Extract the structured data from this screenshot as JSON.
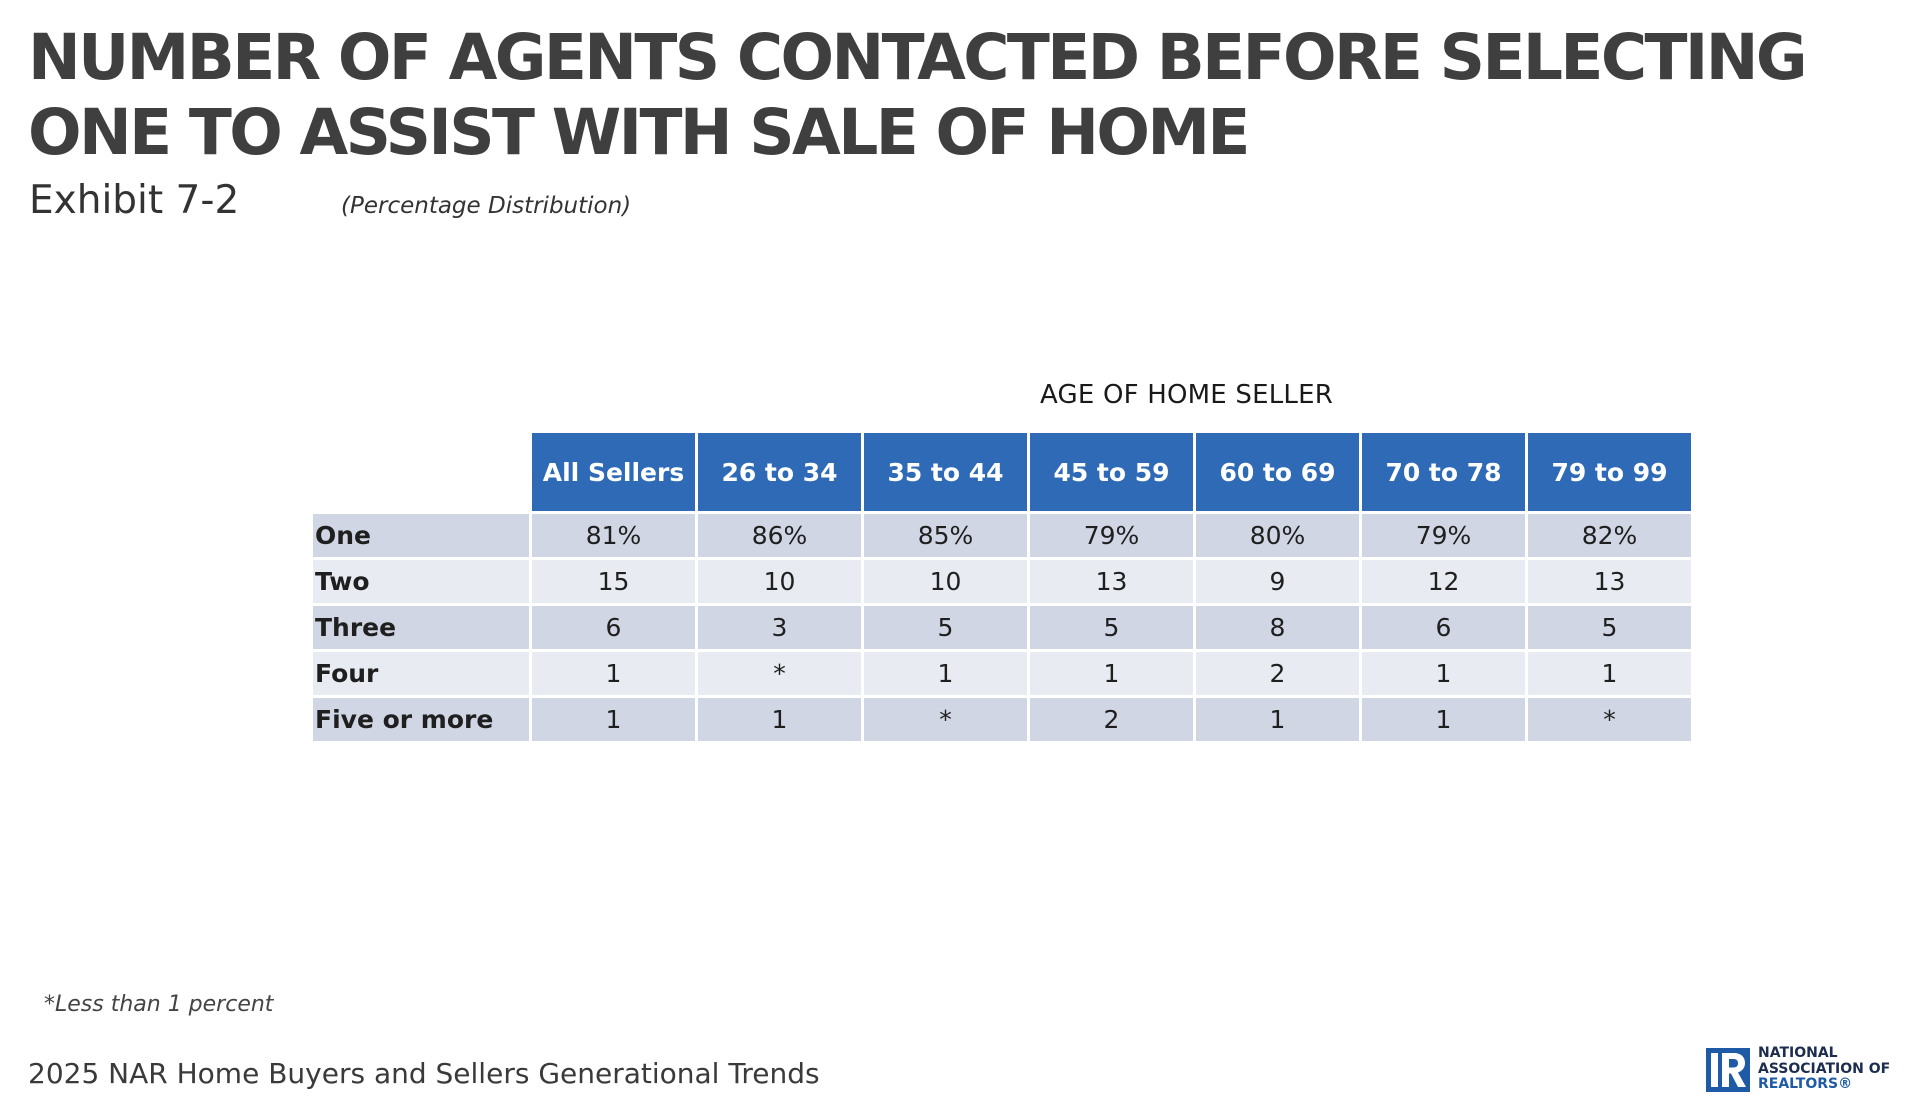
{
  "title": {
    "line1": "NUMBER OF AGENTS CONTACTED BEFORE SELECTING",
    "line2": "ONE TO ASSIST WITH SALE OF HOME"
  },
  "exhibit": "Exhibit 7-2",
  "subtitle": "(Percentage Distribution)",
  "table": {
    "group_header": "AGE OF HOME SELLER",
    "columns": [
      "All Sellers",
      "26 to 34",
      "35 to 44",
      "45 to 59",
      "60 to 69",
      "70 to 78",
      "79 to 99"
    ],
    "rows": [
      {
        "label": "One",
        "values": [
          "81%",
          "86%",
          "85%",
          "79%",
          "80%",
          "79%",
          "82%"
        ]
      },
      {
        "label": "Two",
        "values": [
          "15",
          "10",
          "10",
          "13",
          "9",
          "12",
          "13"
        ]
      },
      {
        "label": "Three",
        "values": [
          "6",
          "3",
          "5",
          "5",
          "8",
          "6",
          "5"
        ]
      },
      {
        "label": "Four",
        "values": [
          "1",
          "*",
          "1",
          "1",
          "2",
          "1",
          "1"
        ]
      },
      {
        "label": "Five or more",
        "values": [
          "1",
          "1",
          "*",
          "2",
          "1",
          "1",
          "*"
        ]
      }
    ]
  },
  "footnote": "*Less than 1 percent",
  "source": "2025 NAR Home Buyers and Sellers Generational Trends",
  "logo": {
    "icon": "realtor-r-logo-icon",
    "line1": "NATIONAL",
    "line2": "ASSOCIATION OF",
    "line3": "REALTORS®"
  },
  "colors": {
    "header_fill": "#2f6ab7",
    "row_odd": "#d0d6e4",
    "row_even": "#e8ebf2",
    "title_text": "#3f3f3f"
  }
}
